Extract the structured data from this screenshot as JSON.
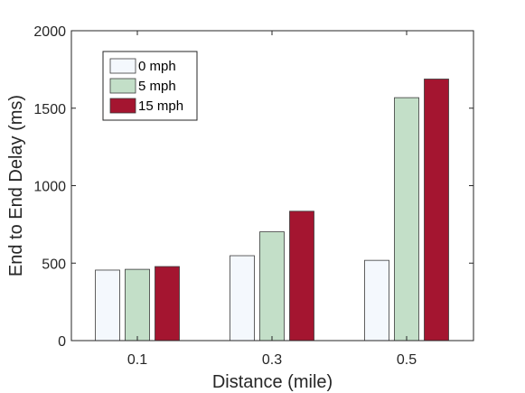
{
  "chart_data": {
    "type": "bar",
    "xlabel": "Distance (mile)",
    "ylabel": "End to End Delay (ms)",
    "categories": [
      "0.1",
      "0.3",
      "0.5"
    ],
    "ylim": [
      0,
      2000
    ],
    "yticks": [
      0,
      500,
      1000,
      1500,
      2000
    ],
    "grid": false,
    "legend_position": "top-left",
    "series": [
      {
        "name": "0 mph",
        "color": "#f4f8fd",
        "values": [
          455,
          548,
          518
        ]
      },
      {
        "name": "5 mph",
        "color": "#c3dfc8",
        "values": [
          460,
          702,
          1568
        ]
      },
      {
        "name": "15 mph",
        "color": "#a41530",
        "values": [
          478,
          835,
          1688
        ]
      }
    ]
  }
}
